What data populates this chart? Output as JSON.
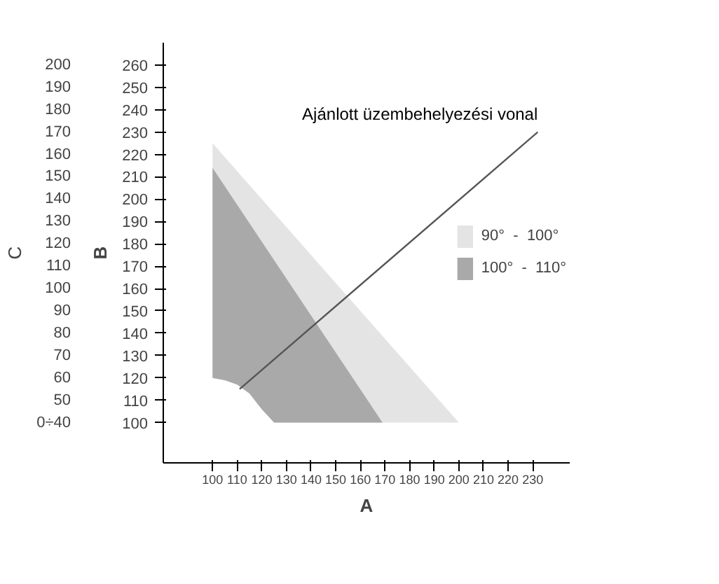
{
  "chart_data": {
    "type": "area",
    "xlabel": "A",
    "ylabel": "B",
    "y2label": "C",
    "xlim": [
      80,
      245
    ],
    "ylim": [
      82,
      270
    ],
    "y2lim": [
      22,
      210
    ],
    "xticks": [
      100,
      110,
      120,
      130,
      140,
      150,
      160,
      170,
      180,
      190,
      200,
      210,
      220,
      230
    ],
    "yticks": [
      100,
      110,
      120,
      130,
      140,
      150,
      160,
      170,
      180,
      190,
      200,
      210,
      220,
      230,
      240,
      250,
      260
    ],
    "y2ticks": [
      {
        "value": 40,
        "label": "0÷40"
      },
      50,
      60,
      70,
      80,
      90,
      100,
      110,
      120,
      130,
      140,
      150,
      160,
      170,
      180,
      190,
      200
    ],
    "series": [
      {
        "name": "90°  -  100°",
        "color": "#e4e4e4",
        "x": [
          100,
          100,
          200,
          125,
          120,
          115,
          110,
          105
        ],
        "values": [
          120,
          225,
          100,
          100,
          106,
          113,
          117,
          119
        ]
      },
      {
        "name": "100°  -  110°",
        "color": "#a9a9a9",
        "x": [
          100,
          100,
          169,
          125,
          120,
          115,
          110,
          105
        ],
        "values": [
          120,
          214,
          100,
          100,
          106,
          113,
          117,
          119
        ]
      },
      {
        "type": "line",
        "name": "Ajánlott üzembehelyezési vonal",
        "color": "#555555",
        "x": [
          111,
          232
        ],
        "values": [
          115,
          230
        ]
      }
    ],
    "legend": "right",
    "grid": false
  }
}
